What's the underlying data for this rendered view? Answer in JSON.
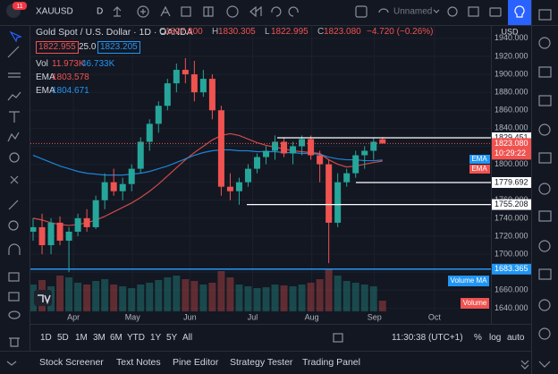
{
  "toolbar": {
    "badge": "11",
    "symbol": "XAUUSD",
    "interval": "D",
    "layout": "Unnamed"
  },
  "legend": {
    "title": "Gold Spot / U.S. Dollar · 1D · OANDA",
    "ohlc": [
      {
        "label": "O",
        "value": "1827.800"
      },
      {
        "label": "H",
        "value": "1830.305"
      },
      {
        "label": "L",
        "value": "1822.995"
      },
      {
        "label": "C",
        "value": "1823.080"
      }
    ],
    "change": "−4.720 (−0.26%)",
    "bid": "1822.955",
    "spread": "25.0",
    "ask": "1823.205",
    "indicators": [
      {
        "name": "Vol",
        "values": [
          "11.973K",
          "46.733K"
        ]
      },
      {
        "name": "EMA",
        "values": [
          "1803.578"
        ]
      },
      {
        "name": "EMA",
        "values": [
          "1804.671"
        ]
      }
    ]
  },
  "chart_data": {
    "type": "candlestick",
    "currency": "USD",
    "candles": {
      "open": [
        1725,
        1730,
        1710,
        1735,
        1715,
        1725,
        1740,
        1730,
        1760,
        1780,
        1770,
        1778,
        1795,
        1825,
        1845,
        1865,
        1890,
        1905,
        1900,
        1880,
        1895,
        1860,
        1775,
        1770,
        1780,
        1795,
        1808,
        1815,
        1825,
        1812,
        1820,
        1828,
        1810,
        1800,
        1735,
        1780,
        1790,
        1810,
        1815,
        1827.8
      ],
      "high": [
        1740,
        1745,
        1740,
        1742,
        1730,
        1745,
        1750,
        1765,
        1790,
        1795,
        1785,
        1800,
        1830,
        1850,
        1870,
        1895,
        1912,
        1918,
        1915,
        1905,
        1900,
        1865,
        1790,
        1785,
        1800,
        1812,
        1820,
        1832,
        1830,
        1825,
        1832,
        1832,
        1815,
        1805,
        1790,
        1795,
        1815,
        1820,
        1830,
        1830.305
      ],
      "low": [
        1715,
        1700,
        1700,
        1710,
        1680,
        1720,
        1725,
        1728,
        1750,
        1765,
        1760,
        1770,
        1790,
        1815,
        1835,
        1860,
        1880,
        1890,
        1870,
        1875,
        1850,
        1765,
        1760,
        1755,
        1775,
        1790,
        1800,
        1805,
        1808,
        1800,
        1810,
        1805,
        1780,
        1690,
        1730,
        1775,
        1785,
        1795,
        1805,
        1822.995
      ],
      "close": [
        1730,
        1710,
        1735,
        1715,
        1725,
        1740,
        1730,
        1760,
        1780,
        1770,
        1778,
        1795,
        1825,
        1845,
        1865,
        1890,
        1905,
        1900,
        1880,
        1895,
        1860,
        1775,
        1770,
        1780,
        1795,
        1808,
        1815,
        1825,
        1812,
        1820,
        1828,
        1810,
        1800,
        1735,
        1780,
        1790,
        1810,
        1815,
        1825,
        1823.08
      ]
    },
    "volume": [
      30,
      35,
      28,
      40,
      38,
      32,
      30,
      34,
      36,
      30,
      28,
      26,
      30,
      32,
      35,
      38,
      40,
      36,
      34,
      30,
      32,
      45,
      38,
      30,
      28,
      26,
      27,
      30,
      29,
      28,
      30,
      32,
      36,
      48,
      40,
      34,
      32,
      30,
      28,
      11.973
    ],
    "series": [
      {
        "name": "EMA",
        "color": "#ef5350",
        "values": [
          1740,
          1738,
          1735,
          1733,
          1732,
          1733,
          1735,
          1738,
          1742,
          1747,
          1752,
          1757,
          1763,
          1770,
          1778,
          1787,
          1796,
          1805,
          1813,
          1820,
          1827,
          1832,
          1834,
          1832,
          1828,
          1824,
          1821,
          1819,
          1817,
          1815,
          1814,
          1813,
          1812,
          1805,
          1800,
          1797,
          1798,
          1800,
          1802,
          1803.578
        ]
      },
      {
        "name": "EMA",
        "color": "#2196f3",
        "values": [
          1810,
          1806,
          1802,
          1798,
          1795,
          1792,
          1790,
          1789,
          1788,
          1788,
          1788,
          1789,
          1790,
          1792,
          1795,
          1798,
          1802,
          1806,
          1810,
          1813,
          1815,
          1816,
          1816,
          1815,
          1815,
          1814,
          1814,
          1814,
          1813,
          1813,
          1812,
          1812,
          1811,
          1808,
          1806,
          1805,
          1805,
          1804,
          1804,
          1804.671
        ]
      }
    ],
    "ylim": [
      1636.4,
      1953.8
    ],
    "yticks": [
      {
        "value": 1640,
        "label": "1640.000"
      },
      {
        "value": 1660,
        "label": "1660.000"
      },
      {
        "value": 1680,
        "label": "1680.000"
      },
      {
        "value": 1700,
        "label": "1700.000"
      },
      {
        "value": 1720,
        "label": "1720.000"
      },
      {
        "value": 1740,
        "label": "1740.000"
      },
      {
        "value": 1760,
        "label": "1760.000"
      },
      {
        "value": 1780,
        "label": "1780.000"
      },
      {
        "value": 1800,
        "label": "1800.000"
      },
      {
        "value": 1820,
        "label": "1820.000"
      },
      {
        "value": 1840,
        "label": "1840.000"
      },
      {
        "value": 1860,
        "label": "1860.000"
      },
      {
        "value": 1880,
        "label": "1880.000"
      },
      {
        "value": 1900,
        "label": "1900.000"
      },
      {
        "value": 1920,
        "label": "1920.000"
      },
      {
        "value": 1940,
        "label": "1940.000"
      }
    ],
    "xlim": [
      -0.3,
      51.1
    ],
    "xticks": [
      {
        "value": 4.5,
        "label": "Apr"
      },
      {
        "value": 11.1,
        "label": "May"
      },
      {
        "value": 17.5,
        "label": "Jun"
      },
      {
        "value": 24.5,
        "label": "Jul"
      },
      {
        "value": 31.1,
        "label": "Aug"
      },
      {
        "value": 38.1,
        "label": "Sep"
      },
      {
        "value": 44.8,
        "label": "Oct"
      }
    ],
    "levels": [
      {
        "value": 1829.451,
        "color": "#ffffff"
      },
      {
        "value": 1779.692,
        "color": "#ffffff"
      },
      {
        "value": 1755.208,
        "color": "#ffffff"
      },
      {
        "value": 1683.365,
        "color": "#2196f3"
      }
    ],
    "last": {
      "value": 1823.08,
      "label": "1823.080"
    },
    "countdown": "10:29:22",
    "pane_labels": [
      "Volume MA",
      "Volume"
    ],
    "grid": true
  },
  "time_range": {
    "buttons": [
      "1D",
      "5D",
      "1M",
      "3M",
      "6M",
      "YTD",
      "1Y",
      "5Y",
      "All"
    ],
    "clock": "11:30:38 (UTC+1)",
    "options": [
      "%",
      "log",
      "auto"
    ]
  },
  "tabs": [
    "Stock Screener",
    "Text Notes",
    "Pine Editor",
    "Strategy Tester",
    "Trading Panel"
  ]
}
